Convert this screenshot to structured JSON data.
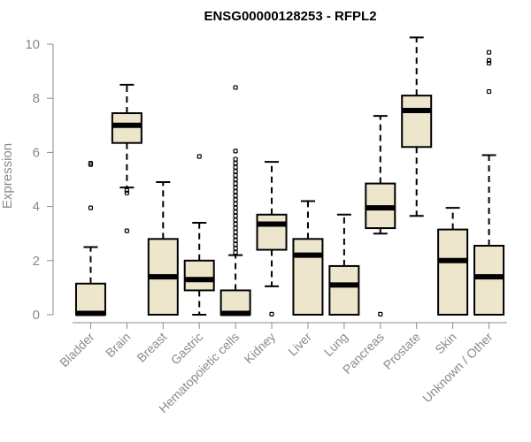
{
  "chart_data": {
    "type": "boxplot",
    "title": "ENSG00000128253 - RFPL2",
    "xlabel": "",
    "ylabel": "Expression",
    "ylim": [
      0,
      10.2
    ],
    "yticks": [
      "0",
      "2",
      "4",
      "6",
      "8",
      "10"
    ],
    "categories": [
      "Bladder",
      "Brain",
      "Breast",
      "Gastric",
      "Hematopoietic cells",
      "Kidney",
      "Liver",
      "Lung",
      "Pancreas",
      "Prostate",
      "Skin",
      "Unknown / Other"
    ],
    "series": [
      {
        "name": "Bladder",
        "whisker_low": 0,
        "q1": 0,
        "median": 0.05,
        "q3": 1.15,
        "whisker_high": 2.5,
        "outliers": [
          3.95,
          5.55,
          5.6
        ]
      },
      {
        "name": "Brain",
        "whisker_low": 4.7,
        "q1": 6.35,
        "median": 7.0,
        "q3": 7.45,
        "whisker_high": 8.5,
        "outliers": [
          4.5,
          4.6,
          3.1
        ]
      },
      {
        "name": "Breast",
        "whisker_low": 0,
        "q1": 0,
        "median": 1.4,
        "q3": 2.8,
        "whisker_high": 4.9,
        "outliers": []
      },
      {
        "name": "Gastric",
        "whisker_low": 0,
        "q1": 0.9,
        "median": 1.3,
        "q3": 2.0,
        "whisker_high": 3.4,
        "outliers": [
          5.85
        ]
      },
      {
        "name": "Hematopoietic cells",
        "whisker_low": 0,
        "q1": 0,
        "median": 0.05,
        "q3": 0.9,
        "whisker_high": 2.2,
        "outliers": [
          2.3,
          2.45,
          2.6,
          2.75,
          2.9,
          3.05,
          3.2,
          3.35,
          3.5,
          3.65,
          3.8,
          3.95,
          4.1,
          4.25,
          4.4,
          4.55,
          4.7,
          4.85,
          5.0,
          5.15,
          5.3,
          5.45,
          5.6,
          5.75,
          6.05,
          8.4
        ]
      },
      {
        "name": "Kidney",
        "whisker_low": 1.05,
        "q1": 2.4,
        "median": 3.35,
        "q3": 3.7,
        "whisker_high": 5.65,
        "outliers": [
          0.02
        ]
      },
      {
        "name": "Liver",
        "whisker_low": 0,
        "q1": 0,
        "median": 2.2,
        "q3": 2.8,
        "whisker_high": 4.2,
        "outliers": []
      },
      {
        "name": "Lung",
        "whisker_low": 0,
        "q1": 0,
        "median": 1.1,
        "q3": 1.8,
        "whisker_high": 3.7,
        "outliers": []
      },
      {
        "name": "Pancreas",
        "whisker_low": 3.0,
        "q1": 3.2,
        "median": 3.95,
        "q3": 4.85,
        "whisker_high": 7.35,
        "outliers": [
          0.02
        ]
      },
      {
        "name": "Prostate",
        "whisker_low": 3.65,
        "q1": 6.2,
        "median": 7.55,
        "q3": 8.1,
        "whisker_high": 10.25,
        "outliers": []
      },
      {
        "name": "Skin",
        "whisker_low": 0,
        "q1": 0,
        "median": 2.0,
        "q3": 3.15,
        "whisker_high": 3.95,
        "outliers": []
      },
      {
        "name": "Unknown / Other",
        "whisker_low": 0,
        "q1": 0,
        "median": 1.4,
        "q3": 2.55,
        "whisker_high": 5.9,
        "outliers": [
          8.25,
          9.3,
          9.4,
          9.7
        ]
      }
    ]
  }
}
